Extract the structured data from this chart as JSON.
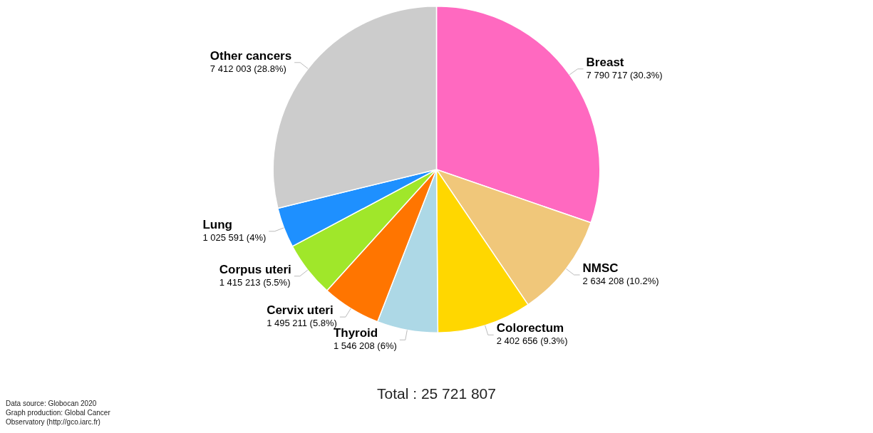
{
  "chart_data": {
    "type": "pie",
    "categories": [
      "Breast",
      "NMSC",
      "Colorectum",
      "Thyroid",
      "Cervix uteri",
      "Corpus uteri",
      "Lung",
      "Other cancers"
    ],
    "values": [
      7790717,
      2634208,
      2402656,
      1546208,
      1495211,
      1415213,
      1025591,
      7412003
    ],
    "colors": [
      "#ff69c0",
      "#f0c77a",
      "#ffd700",
      "#add8e6",
      "#ff7500",
      "#a0e72a",
      "#1e90ff",
      "#cccccc"
    ],
    "value_labels": [
      "7 790 717 (30.3%)",
      "2 634 208 (10.2%)",
      "2 402 656 (9.3%)",
      "1 546 208 (6%)",
      "1 495 211 (5.8%)",
      "1 415 213 (5.5%)",
      "1 025 591 (4%)",
      "7 412 003 (28.8%)"
    ],
    "legend": false,
    "annotations": [
      "Total : 25 721 807",
      "Data source: Globocan 2020",
      "Graph production: Global Cancer",
      "Observatory (http://gco.iarc.fr)"
    ]
  }
}
